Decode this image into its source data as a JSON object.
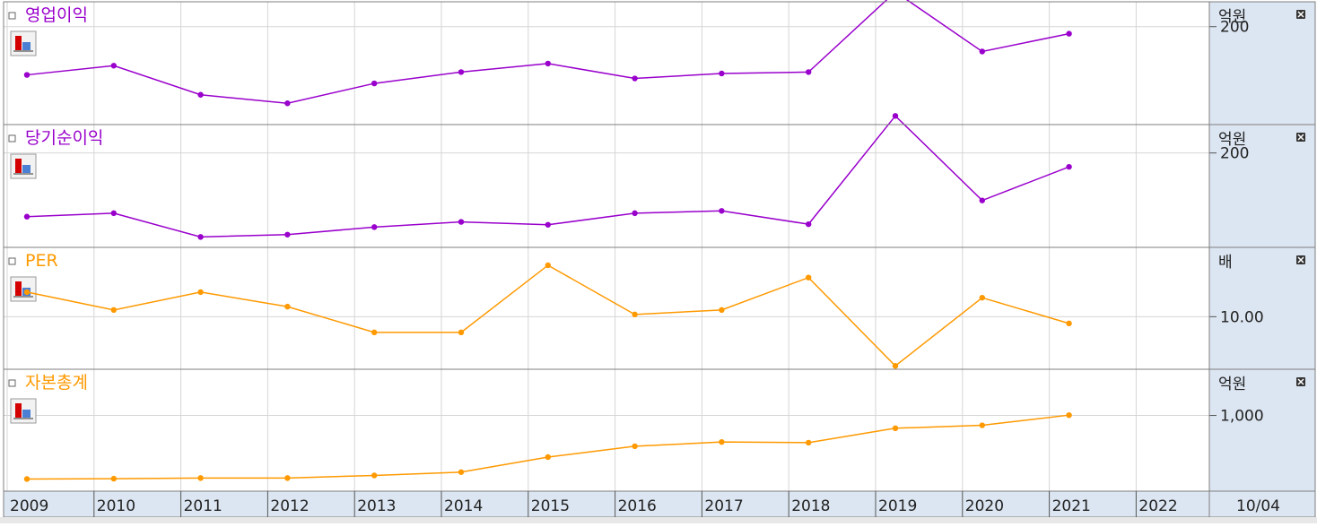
{
  "colors": {
    "purple": "#9900cc",
    "orange": "#ff9900",
    "axis_panel_bg": "#dce6f2",
    "grid": "#d6d6d6",
    "border": "#7f7f7f"
  },
  "icons": {
    "pane_marker": "small-square-icon",
    "chart_type": "bar-chart-icon",
    "close": "close-x-icon"
  },
  "x_axis": {
    "ticks": [
      "2009",
      "2010",
      "2011",
      "2012",
      "2013",
      "2014",
      "2015",
      "2016",
      "2017",
      "2018",
      "2019",
      "2020",
      "2021",
      "2022"
    ],
    "right_label": "10/04"
  },
  "chart_data": [
    {
      "type": "line",
      "title": "영업이익",
      "unit": "억원",
      "color": "#9900cc",
      "y_tick_labels": [
        {
          "value": 200,
          "label": "200"
        }
      ],
      "ylim": [
        62,
        235
      ],
      "x": [
        "2009",
        "2010",
        "2011",
        "2012",
        "2013",
        "2014",
        "2015",
        "2016",
        "2017",
        "2018",
        "2019",
        "2020",
        "2021"
      ],
      "values": [
        132,
        145,
        104,
        92,
        120,
        136,
        148,
        127,
        134,
        136,
        249,
        165,
        190
      ]
    },
    {
      "type": "line",
      "title": "당기순이익",
      "unit": "억원",
      "color": "#9900cc",
      "y_tick_labels": [
        {
          "value": 200,
          "label": "200"
        }
      ],
      "ylim": [
        37,
        249
      ],
      "x": [
        "2009",
        "2010",
        "2011",
        "2012",
        "2013",
        "2014",
        "2015",
        "2016",
        "2017",
        "2018",
        "2019",
        "2020",
        "2021"
      ],
      "values": [
        90,
        96,
        55,
        59,
        72,
        81,
        76,
        96,
        100,
        77,
        264,
        118,
        176
      ]
    },
    {
      "type": "line",
      "title": "PER",
      "unit": "배",
      "color": "#ff9900",
      "y_tick_labels": [
        {
          "value": 10.0,
          "label": "10.00"
        }
      ],
      "ylim": [
        5.3,
        16.2
      ],
      "x": [
        "2009",
        "2010",
        "2011",
        "2012",
        "2013",
        "2014",
        "2015",
        "2016",
        "2017",
        "2018",
        "2019",
        "2020",
        "2021"
      ],
      "values": [
        12.2,
        10.6,
        12.2,
        10.9,
        8.6,
        8.6,
        14.6,
        10.2,
        10.6,
        13.5,
        5.6,
        11.7,
        9.4
      ]
    },
    {
      "type": "line",
      "title": "자본총계",
      "unit": "억원",
      "color": "#ff9900",
      "y_tick_labels": [
        {
          "value": 1000,
          "label": "1,000"
        }
      ],
      "ylim": [
        -155,
        1705
      ],
      "x": [
        "2009",
        "2010",
        "2011",
        "2012",
        "2013",
        "2014",
        "2015",
        "2016",
        "2017",
        "2018",
        "2019",
        "2020",
        "2021"
      ],
      "values": [
        30,
        35,
        45,
        45,
        85,
        135,
        365,
        530,
        595,
        585,
        805,
        850,
        1005
      ]
    }
  ]
}
